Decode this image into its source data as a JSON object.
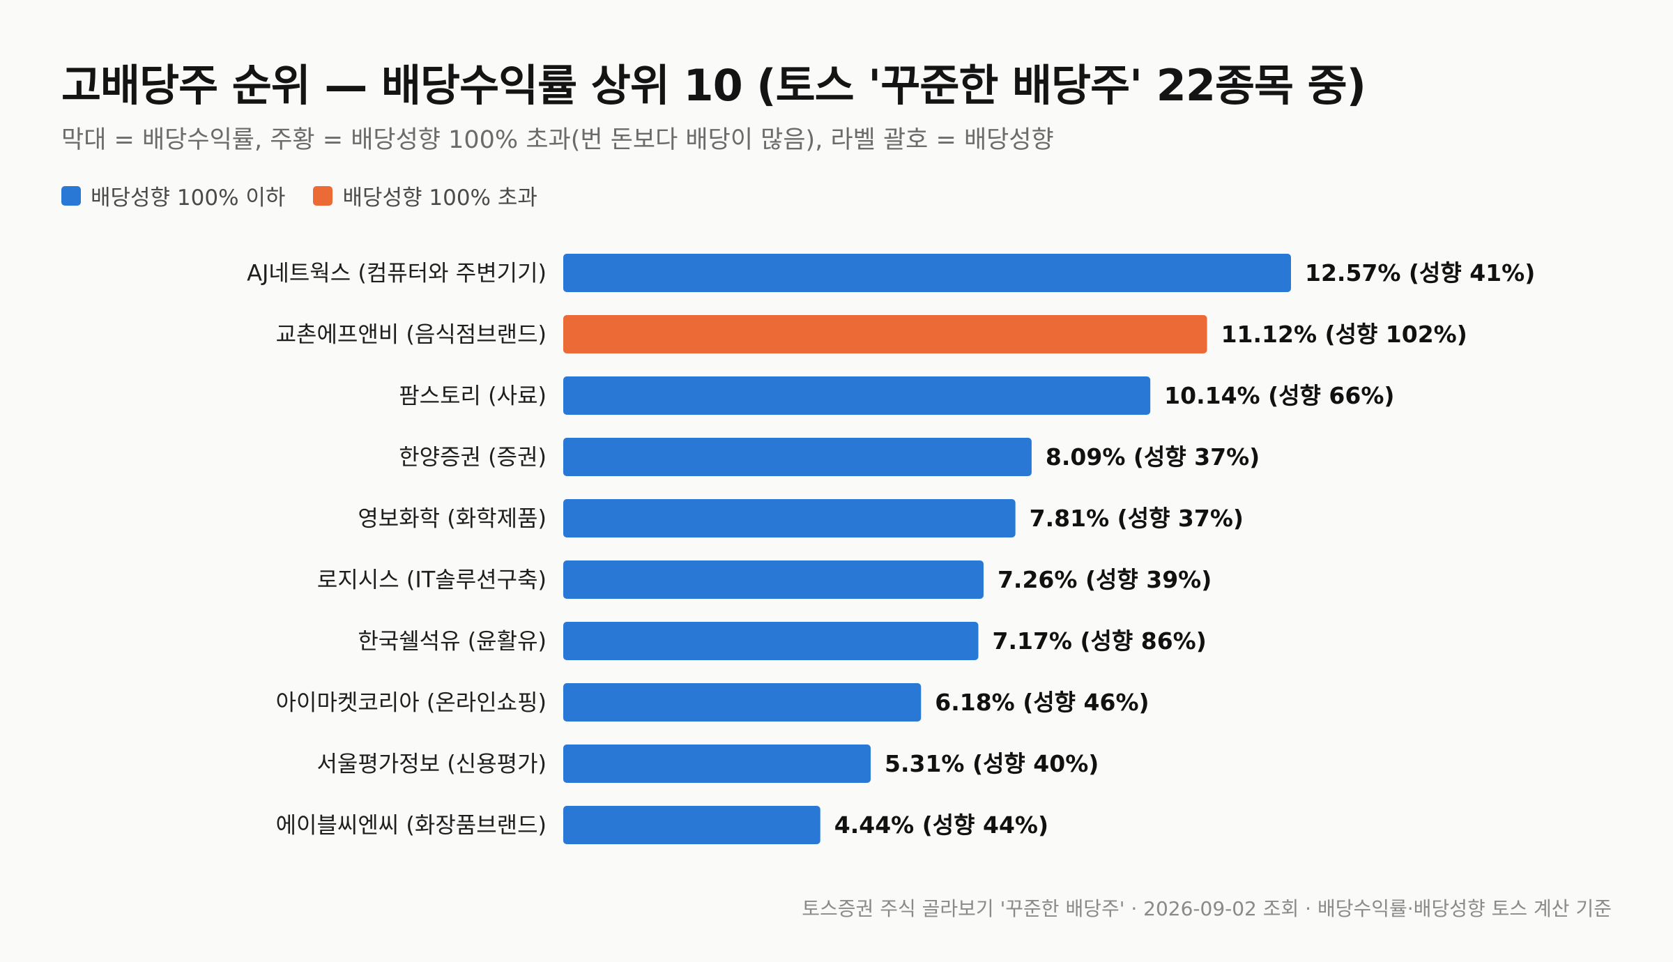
{
  "title": "고배당주 순위 — 배당수익률 상위 10 (토스 '꾸준한 배당주' 22종목 중)",
  "subtitle": "막대 = 배당수익률, 주황 = 배당성향 100% 초과(번 돈보다 배당이 많음), 라벨 괄호 = 배당성향",
  "legend": [
    {
      "label": "배당성향 100% 이하",
      "color": "#2a78d6"
    },
    {
      "label": "배당성향 100% 초과",
      "color": "#ec6a35"
    }
  ],
  "footnote": "토스증권 주식 골라보기 '꾸준한 배당주' · 2026-09-02 조회 · 배당수익률·배당성향 토스 계산 기준",
  "chart_data": {
    "type": "bar",
    "orientation": "horizontal",
    "categories": [
      "AJ네트웍스 (컴퓨터와 주변기기)",
      "교촌에프앤비 (음식점브랜드)",
      "팜스토리 (사료)",
      "한양증권 (증권)",
      "영보화학 (화학제품)",
      "로지시스 (IT솔루션구축)",
      "한국쉘석유 (윤활유)",
      "아이마켓코리아 (온라인쇼핑)",
      "서울평가정보 (신용평가)",
      "에이블씨엔씨 (화장품브랜드)"
    ],
    "values": [
      12.57,
      11.12,
      10.14,
      8.09,
      7.81,
      7.26,
      7.17,
      6.18,
      5.31,
      4.44
    ],
    "payout_ratio": [
      41,
      102,
      66,
      37,
      37,
      39,
      86,
      46,
      40,
      44
    ],
    "labels": [
      "12.57% (성향 41%)",
      "11.12% (성향 102%)",
      "10.14% (성향 66%)",
      "8.09% (성향 37%)",
      "7.81% (성향 37%)",
      "7.26% (성향 39%)",
      "7.17% (성향 86%)",
      "6.18% (성향 46%)",
      "5.31% (성향 40%)",
      "4.44% (성향 44%)"
    ],
    "xlim": [
      0,
      12.57
    ],
    "grid": false,
    "legend_position": "top-left",
    "colors": {
      "normal": "#2a78d6",
      "over100": "#ec6a35"
    }
  }
}
